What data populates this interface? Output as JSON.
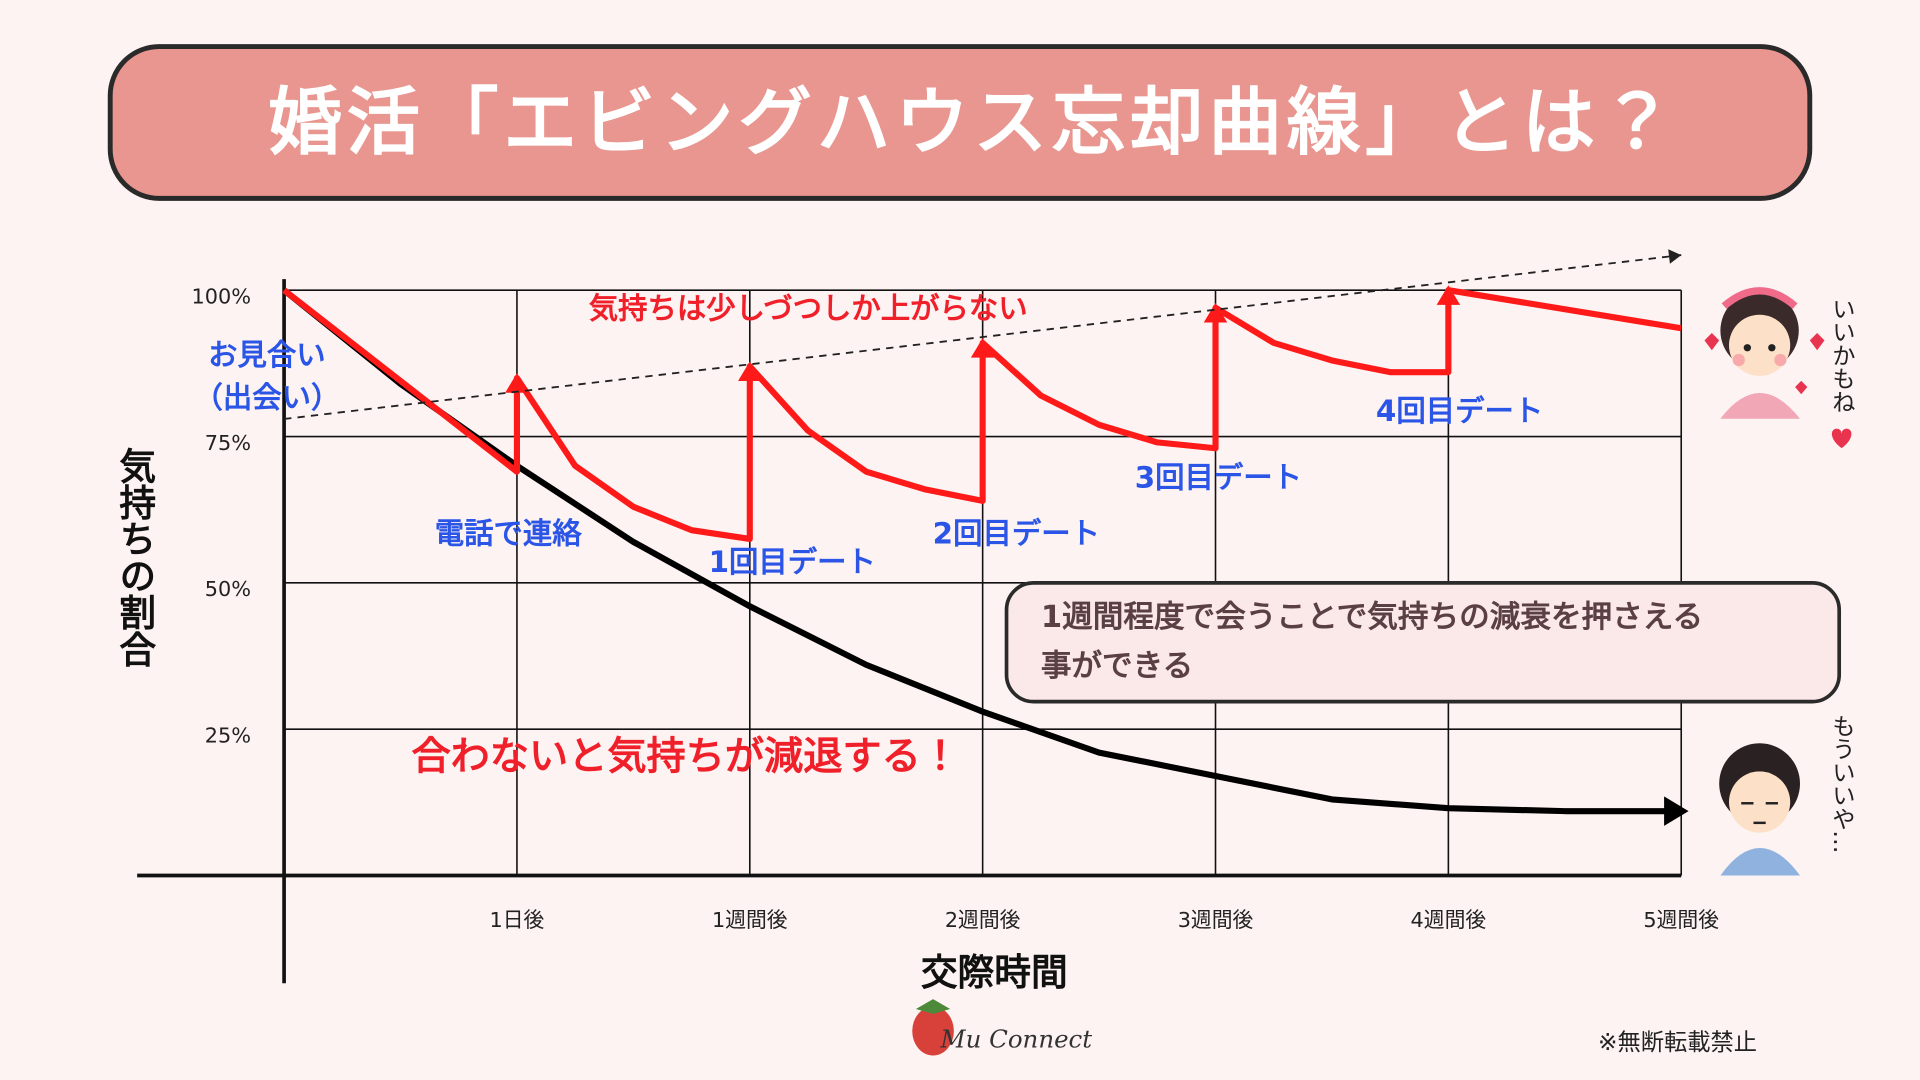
{
  "chart_data": {
    "type": "line",
    "title": "婚活「エビングハウス忘却曲線」とは？",
    "ylabel": "気持ちの割合",
    "xlabel": "交際時間",
    "xlim": [
      0,
      6
    ],
    "ylim": [
      0,
      100
    ],
    "xticks": [
      {
        "value": 1,
        "label": "1日後"
      },
      {
        "value": 2,
        "label": "1週間後"
      },
      {
        "value": 3,
        "label": "2週間後"
      },
      {
        "value": 4,
        "label": "3週間後"
      },
      {
        "value": 5,
        "label": "4週間後"
      },
      {
        "value": 6,
        "label": "5週間後"
      }
    ],
    "yticks": [
      {
        "value": 25,
        "label": "25%"
      },
      {
        "value": 50,
        "label": "50%"
      },
      {
        "value": 75,
        "label": "75%"
      },
      {
        "value": 100,
        "label": "100%"
      }
    ],
    "grid": true,
    "series": [
      {
        "color": "#000000",
        "style": "solid",
        "x": [
          0,
          0.5,
          1,
          1.5,
          2,
          2.5,
          3,
          3.5,
          4,
          4.5,
          5,
          5.5,
          6
        ],
        "values": [
          100,
          84,
          70,
          57,
          46,
          36,
          28,
          21,
          17,
          13,
          11.5,
          11,
          11
        ]
      },
      {
        "color": "#ff1a1a",
        "style": "solid",
        "x": [
          0,
          1,
          1,
          1.25,
          1.5,
          1.75,
          2,
          2,
          2.25,
          2.5,
          2.75,
          3,
          3,
          3.25,
          3.5,
          3.75,
          4,
          4,
          4.25,
          4.5,
          4.75,
          5,
          5,
          6
        ],
        "values": [
          100,
          69,
          85,
          70,
          63,
          59,
          57.5,
          87,
          76,
          69,
          66,
          64,
          91,
          82,
          77,
          74,
          73,
          97,
          91,
          88,
          86,
          86,
          100,
          93.5
        ]
      },
      {
        "color": "#222222",
        "style": "dashed",
        "x": [
          0,
          6
        ],
        "values": [
          78,
          106
        ]
      }
    ],
    "annotations": {
      "trend": "気持ちは少しづつしか上がらない",
      "meet": [
        "お見合い",
        "（出会い）"
      ],
      "phone": "電話で連絡",
      "date1": "1回目デート",
      "date2": "2回目デート",
      "date3": "3回目デート",
      "date4": "4回目デート",
      "decline": "合わないと気持ちが減退する！",
      "callout": [
        "1週間程度で会うことで気持ちの減衰を押さえる",
        "事ができる"
      ],
      "happy": "いいかもね",
      "sad": "もういいや…"
    },
    "brand": "Mu Connect",
    "footer": "※無断転載禁止"
  }
}
